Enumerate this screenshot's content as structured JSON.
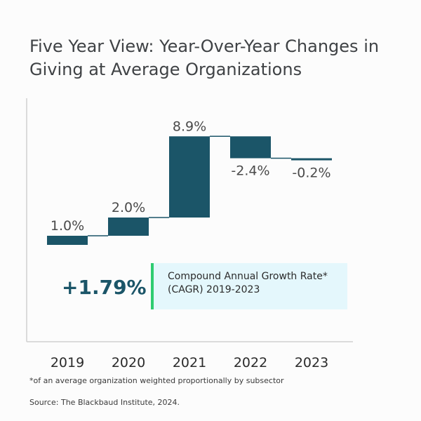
{
  "chart_data": {
    "type": "waterfall",
    "title": "Five Year View: Year-Over-Year Changes in Giving at Average Organizations",
    "categories": [
      "2019",
      "2020",
      "2021",
      "2022",
      "2023"
    ],
    "values": [
      1.0,
      2.0,
      8.9,
      -2.4,
      -0.2
    ],
    "data_labels": [
      "1.0%",
      "2.0%",
      "8.9%",
      "-2.4%",
      "-0.2%"
    ],
    "bar_color": "#1b5568",
    "grid": false,
    "annotation": {
      "value": "+1.79%",
      "label_line1": "Compound Annual Growth Rate*",
      "label_line2": "(CAGR) 2019-2023",
      "accent_color": "#2ecc71",
      "box_color": "#e4f7fc"
    }
  },
  "footnote": "*of an average organization weighted proportionally by subsector",
  "source": "Source: The Blackbaud Institute, 2024."
}
